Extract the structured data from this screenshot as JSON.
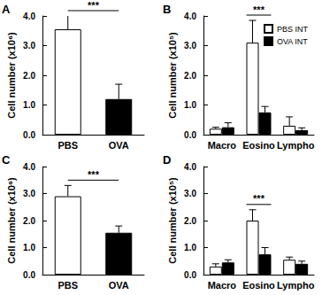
{
  "chart_data": [
    {
      "type": "bar",
      "title": "A",
      "y_label": "Cell number (x10⁶)",
      "categories": [
        "PBS",
        "OVA"
      ],
      "values": [
        3.55,
        1.2
      ],
      "errors": [
        0.6,
        0.5
      ],
      "colors": [
        "#ffffff",
        "#000000"
      ],
      "ylim": [
        0,
        4
      ],
      "yticks": [
        {
          "value": 0,
          "label": "0.0"
        },
        {
          "value": 1,
          "label": "1.0"
        },
        {
          "value": 2,
          "label": "2.0"
        },
        {
          "value": 3,
          "label": "3.0"
        },
        {
          "value": 4,
          "label": "4.0"
        }
      ],
      "significance": {
        "label": "***",
        "categories": [
          "PBS",
          "OVA"
        ]
      }
    },
    {
      "type": "bar",
      "title": "B",
      "y_label": "Cell number (x10⁵)",
      "categories": [
        "Macro",
        "Eosino",
        "Lympho"
      ],
      "series": [
        {
          "name": "PBS INT",
          "color": "#ffffff",
          "values": [
            0.2,
            3.1,
            0.3
          ],
          "errors": [
            0.05,
            0.75,
            0.3
          ]
        },
        {
          "name": "OVA INT",
          "color": "#000000",
          "values": [
            0.25,
            0.75,
            0.15
          ],
          "errors": [
            0.15,
            0.2,
            0.08
          ]
        }
      ],
      "legend": "upper right",
      "ylim": [
        0,
        4
      ],
      "yticks": [
        {
          "value": 0,
          "label": "0.0"
        },
        {
          "value": 1,
          "label": "1.0"
        },
        {
          "value": 2,
          "label": "2.0"
        },
        {
          "value": 3,
          "label": "3.0"
        },
        {
          "value": 4,
          "label": "4.0"
        }
      ],
      "significance": {
        "label": "***",
        "categories": [
          "Eosino"
        ]
      }
    },
    {
      "type": "bar",
      "title": "C",
      "y_label": "Cell number (x10⁶)",
      "categories": [
        "PBS",
        "OVA"
      ],
      "values": [
        2.9,
        1.55
      ],
      "errors": [
        0.4,
        0.25
      ],
      "colors": [
        "#ffffff",
        "#000000"
      ],
      "ylim": [
        0,
        4
      ],
      "yticks": [
        {
          "value": 0,
          "label": "0.0"
        },
        {
          "value": 1,
          "label": "1.0"
        },
        {
          "value": 2,
          "label": "2.0"
        },
        {
          "value": 3,
          "label": "3.0"
        },
        {
          "value": 4,
          "label": "4.0"
        }
      ],
      "significance": {
        "label": "***",
        "categories": [
          "PBS",
          "OVA"
        ]
      }
    },
    {
      "type": "bar",
      "title": "D",
      "y_label": "Cell number (x10⁵)",
      "categories": [
        "Macro",
        "Eosino",
        "Lympho"
      ],
      "series": [
        {
          "name": "PBS INT",
          "color": "#ffffff",
          "values": [
            0.3,
            2.0,
            0.55
          ],
          "errors": [
            0.1,
            0.4,
            0.1
          ]
        },
        {
          "name": "OVA INT",
          "color": "#000000",
          "values": [
            0.45,
            0.75,
            0.4
          ],
          "errors": [
            0.1,
            0.25,
            0.1
          ]
        }
      ],
      "ylim": [
        0,
        4
      ],
      "yticks": [
        {
          "value": 0,
          "label": "0.0"
        },
        {
          "value": 1,
          "label": "1.0"
        },
        {
          "value": 2,
          "label": "2.0"
        },
        {
          "value": 3,
          "label": "3.0"
        },
        {
          "value": 4,
          "label": "4.0"
        }
      ],
      "significance": {
        "label": "***",
        "categories": [
          "Eosino"
        ]
      }
    }
  ]
}
